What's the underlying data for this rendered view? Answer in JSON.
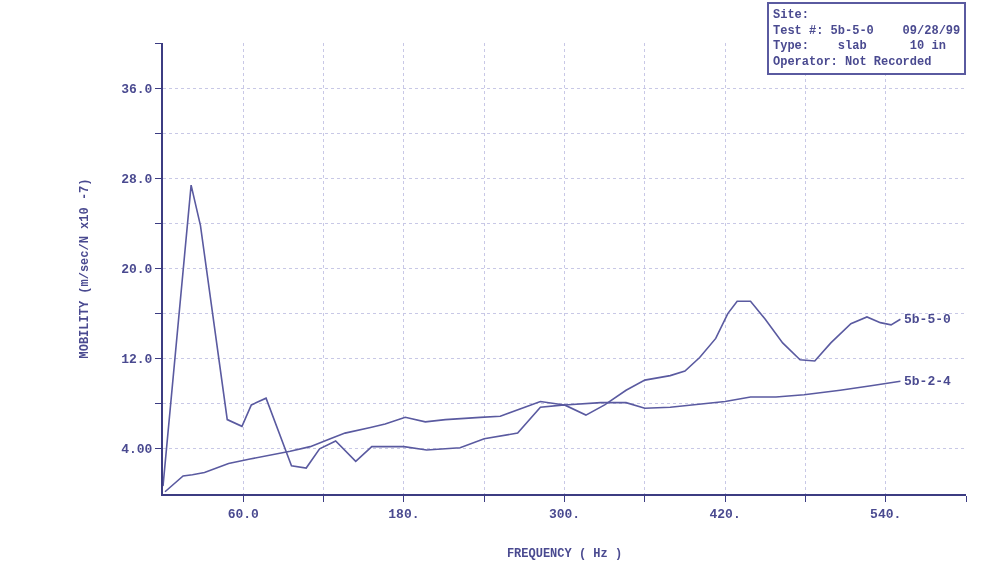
{
  "chart_data": {
    "type": "line",
    "xlabel": "FREQUENCY ( Hz )",
    "ylabel": "MOBILITY (m/sec/N x10 -7)",
    "xlim": [
      0,
      600
    ],
    "ylim": [
      0,
      40
    ],
    "xticks": [
      {
        "value": 60,
        "label": "60.0"
      },
      {
        "value": 120,
        "label": null
      },
      {
        "value": 180,
        "label": "180."
      },
      {
        "value": 240,
        "label": null
      },
      {
        "value": 300,
        "label": "300."
      },
      {
        "value": 360,
        "label": null
      },
      {
        "value": 420,
        "label": "420."
      },
      {
        "value": 480,
        "label": null
      },
      {
        "value": 540,
        "label": "540."
      },
      {
        "value": 600,
        "label": null
      }
    ],
    "yticks": [
      {
        "value": 4,
        "label": "4.00"
      },
      {
        "value": 8,
        "label": null
      },
      {
        "value": 12,
        "label": "12.0"
      },
      {
        "value": 16,
        "label": null
      },
      {
        "value": 20,
        "label": "20.0"
      },
      {
        "value": 24,
        "label": null
      },
      {
        "value": 28,
        "label": "28.0"
      },
      {
        "value": 32,
        "label": null
      },
      {
        "value": 36,
        "label": "36.0"
      },
      {
        "value": 40,
        "label": null
      }
    ],
    "grid": true,
    "legend": false,
    "marker": "none",
    "line_style": "solid",
    "annotations": [
      "Site:",
      "Test #: 5b-5-0    09/28/99",
      "Type:    slab      10 in",
      "Operator: Not Recorded"
    ],
    "series": [
      {
        "name": "5b-5-0",
        "color": "#5a5aa0",
        "x": [
          0,
          21,
          28,
          48,
          59,
          66,
          77,
          96,
          107,
          117,
          129,
          144,
          156,
          180,
          197,
          222,
          240,
          265,
          282,
          300,
          316,
          330,
          346,
          360,
          379,
          390,
          401,
          413,
          422,
          429,
          439,
          450,
          463,
          476,
          487,
          499,
          514,
          526,
          536,
          544,
          551
        ],
        "values": [
          0.7,
          27.4,
          23.8,
          6.6,
          6.0,
          7.9,
          8.5,
          2.5,
          2.3,
          4.0,
          4.7,
          2.9,
          4.2,
          4.2,
          3.9,
          4.1,
          4.9,
          5.4,
          7.7,
          7.9,
          7.0,
          7.9,
          9.2,
          10.1,
          10.5,
          10.9,
          12.1,
          13.8,
          16.0,
          17.1,
          17.1,
          15.5,
          13.4,
          11.9,
          11.8,
          13.4,
          15.1,
          15.7,
          15.2,
          15.0,
          15.5
        ]
      },
      {
        "name": "5b-2-4",
        "color": "#5a5aa0",
        "x": [
          1.5,
          15,
          22,
          31,
          49,
          65,
          95,
          110,
          125,
          136,
          155,
          166,
          181,
          196,
          211,
          237,
          252,
          282,
          300,
          327,
          346,
          360,
          379,
          420,
          439,
          458,
          479,
          506,
          529,
          551
        ],
        "values": [
          0.2,
          1.6,
          1.7,
          1.9,
          2.7,
          3.1,
          3.8,
          4.2,
          4.9,
          5.4,
          5.9,
          6.2,
          6.8,
          6.4,
          6.6,
          6.8,
          6.9,
          8.2,
          7.9,
          8.1,
          8.1,
          7.6,
          7.7,
          8.2,
          8.6,
          8.6,
          8.8,
          9.2,
          9.6,
          10.0
        ]
      }
    ]
  }
}
